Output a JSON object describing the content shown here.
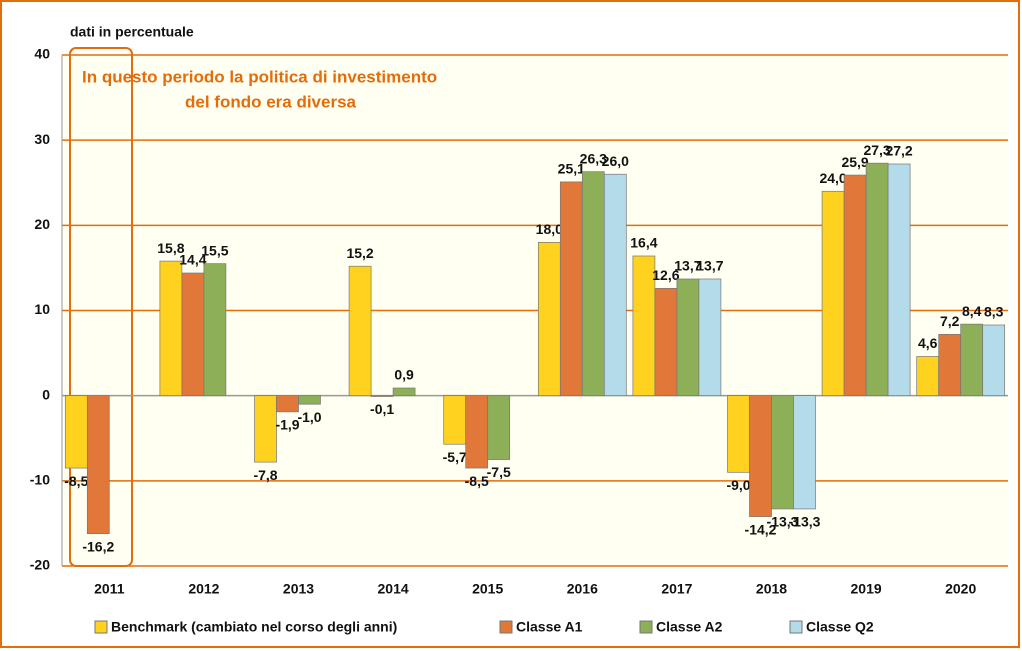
{
  "chart_data": {
    "type": "bar",
    "y_axis_label": "dati in percentuale",
    "annotation": [
      "In questo periodo la politica  di investimento",
      "del fondo era diversa"
    ],
    "categories": [
      "2011",
      "2012",
      "2013",
      "2014",
      "2015",
      "2016",
      "2017",
      "2018",
      "2019",
      "2020"
    ],
    "series": [
      {
        "name": "Benchmark (cambiato nel corso degli anni)",
        "color": "#ffd21f",
        "values": [
          -8.5,
          15.8,
          -7.8,
          15.2,
          -5.7,
          18.0,
          16.4,
          -9.0,
          24.0,
          4.6
        ],
        "value_labels": [
          "-8,5",
          "15,8",
          "-7,8",
          "15,2",
          "-5,7",
          "18,0",
          "16,4",
          "-9,0",
          "24,0",
          "4,6"
        ]
      },
      {
        "name": "Classe A1",
        "color": "#e2773a",
        "values": [
          -16.2,
          14.4,
          -1.9,
          -0.1,
          -8.5,
          25.1,
          12.6,
          -14.2,
          25.9,
          7.2
        ],
        "value_labels": [
          "-16,2",
          "14,4",
          "-1,9",
          "-0,1",
          "-8,5",
          "25,1",
          "12,6",
          "-14,2",
          "25,9",
          "7,2"
        ]
      },
      {
        "name": "Classe A2",
        "color": "#8daf58",
        "values": [
          null,
          15.5,
          -1.0,
          0.9,
          -7.5,
          26.3,
          13.7,
          -13.3,
          27.3,
          8.4
        ],
        "value_labels": [
          null,
          "15,5",
          "-1,0",
          "0,9",
          "-7,5",
          "26,3",
          "13,7",
          "-13,3",
          "27,3",
          "8,4"
        ]
      },
      {
        "name": "Classe Q2",
        "color": "#b4dbe9",
        "values": [
          null,
          null,
          null,
          null,
          null,
          26.0,
          13.7,
          -13.3,
          27.2,
          8.3
        ],
        "value_labels": [
          null,
          null,
          null,
          null,
          null,
          "26,0",
          "13,7",
          "-13,3",
          "27,2",
          "8,3"
        ]
      }
    ],
    "ylim": [
      -20,
      40
    ],
    "yticks": [
      -20,
      -10,
      0,
      10,
      20,
      30,
      40
    ],
    "grid": true,
    "legend": "bottom"
  }
}
